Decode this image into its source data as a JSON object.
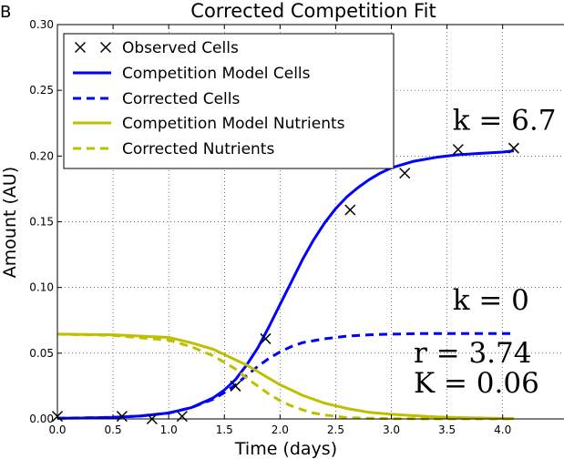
{
  "panel_label": "B",
  "chart_data": {
    "type": "line",
    "title": "Corrected Competition Fit",
    "xlabel": "Time (days)",
    "ylabel": "Amount (AU)",
    "xlim": [
      0.0,
      4.6
    ],
    "ylim": [
      0.0,
      0.3
    ],
    "grid": true,
    "legend_position": "top-left",
    "x_ticks": [
      0.0,
      0.5,
      1.0,
      1.5,
      2.0,
      2.5,
      3.0,
      3.5,
      4.0
    ],
    "x_tick_labels": [
      "0.0",
      "0.5",
      "1.0",
      "1.5",
      "2.0",
      "2.5",
      "3.0",
      "3.5",
      "4.0"
    ],
    "y_ticks": [
      0.0,
      0.05,
      0.1,
      0.15,
      0.2,
      0.25,
      0.3
    ],
    "y_tick_labels": [
      "0.00",
      "0.05",
      "0.10",
      "0.15",
      "0.20",
      "0.25",
      "0.30"
    ],
    "series": [
      {
        "name": "Observed Cells",
        "kind": "markers",
        "marker": "x",
        "color": "#000000",
        "x": [
          0.0,
          0.58,
          0.85,
          1.12,
          1.6,
          1.87,
          2.63,
          3.12,
          3.6,
          4.1
        ],
        "y": [
          0.002,
          0.002,
          0.0,
          0.002,
          0.025,
          0.061,
          0.159,
          0.187,
          0.205,
          0.206
        ]
      },
      {
        "name": "Competition Model Cells",
        "kind": "line",
        "dash": "solid",
        "color": "#0000ff",
        "x": [
          0.0,
          0.25,
          0.5,
          0.75,
          1.0,
          1.2,
          1.4,
          1.5,
          1.6,
          1.7,
          1.8,
          1.9,
          2.0,
          2.1,
          2.2,
          2.3,
          2.4,
          2.5,
          2.6,
          2.7,
          2.8,
          2.9,
          3.0,
          3.2,
          3.4,
          3.6,
          3.8,
          4.0,
          4.1
        ],
        "y": [
          0.0005,
          0.0007,
          0.0012,
          0.0022,
          0.0045,
          0.0085,
          0.016,
          0.022,
          0.03,
          0.041,
          0.054,
          0.07,
          0.087,
          0.104,
          0.121,
          0.136,
          0.149,
          0.16,
          0.169,
          0.176,
          0.182,
          0.187,
          0.191,
          0.196,
          0.199,
          0.201,
          0.202,
          0.203,
          0.204
        ]
      },
      {
        "name": "Corrected Cells",
        "kind": "line",
        "dash": "dashed",
        "color": "#0000ff",
        "x": [
          0.0,
          0.5,
          0.75,
          1.0,
          1.2,
          1.4,
          1.5,
          1.6,
          1.7,
          1.8,
          1.9,
          2.0,
          2.1,
          2.2,
          2.4,
          2.6,
          2.8,
          3.0,
          3.3,
          3.6,
          4.1
        ],
        "y": [
          0.0005,
          0.0012,
          0.0022,
          0.0045,
          0.0085,
          0.015,
          0.02,
          0.026,
          0.033,
          0.04,
          0.046,
          0.051,
          0.055,
          0.058,
          0.061,
          0.063,
          0.064,
          0.0645,
          0.065,
          0.065,
          0.065
        ]
      },
      {
        "name": "Competition Model Nutrients",
        "kind": "line",
        "dash": "solid",
        "color": "#bfbf00",
        "x": [
          0.0,
          0.5,
          1.0,
          1.2,
          1.4,
          1.5,
          1.6,
          1.7,
          1.8,
          1.9,
          2.0,
          2.1,
          2.2,
          2.3,
          2.4,
          2.5,
          2.6,
          2.8,
          3.0,
          3.2,
          3.4,
          3.7,
          4.1
        ],
        "y": [
          0.0645,
          0.064,
          0.062,
          0.058,
          0.053,
          0.049,
          0.045,
          0.041,
          0.036,
          0.031,
          0.026,
          0.022,
          0.018,
          0.015,
          0.012,
          0.01,
          0.008,
          0.005,
          0.0035,
          0.0025,
          0.0015,
          0.0008,
          0.0003
        ]
      },
      {
        "name": "Corrected Nutrients",
        "kind": "line",
        "dash": "dashed",
        "color": "#bfbf00",
        "x": [
          0.0,
          0.5,
          1.0,
          1.2,
          1.4,
          1.5,
          1.6,
          1.7,
          1.8,
          1.9,
          2.0,
          2.1,
          2.2,
          2.3,
          2.4,
          2.5,
          2.6,
          2.8,
          3.0,
          3.4,
          4.1
        ],
        "y": [
          0.0645,
          0.0635,
          0.06,
          0.055,
          0.048,
          0.043,
          0.038,
          0.031,
          0.025,
          0.019,
          0.014,
          0.01,
          0.007,
          0.0045,
          0.003,
          0.002,
          0.001,
          0.0005,
          0.0002,
          0.0001,
          0.0001
        ]
      }
    ],
    "annotations": [
      {
        "text": "k = 6.7",
        "x": 3.55,
        "y": 0.22
      },
      {
        "text": "k = 0",
        "x": 3.55,
        "y": 0.083
      },
      {
        "text": "r = 3.74",
        "x": 3.2,
        "y": 0.043
      },
      {
        "text": "K = 0.06",
        "x": 3.2,
        "y": 0.02
      }
    ]
  }
}
